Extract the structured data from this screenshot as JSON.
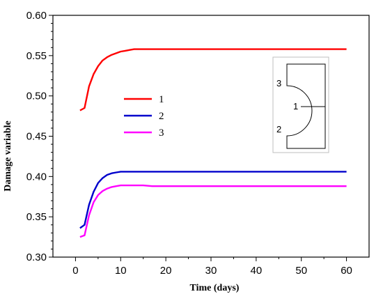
{
  "chart_data": {
    "type": "line",
    "xlabel": "Time (days)",
    "ylabel": "Damage variable",
    "xlim": [
      -5,
      65
    ],
    "ylim": [
      0.3,
      0.6
    ],
    "xticks": [
      "0",
      "10",
      "20",
      "30",
      "40",
      "50",
      "60"
    ],
    "yticks": [
      "0.30",
      "0.35",
      "0.40",
      "0.45",
      "0.50",
      "0.55",
      "0.60"
    ],
    "grid": false,
    "legend_position": "center-left",
    "series": [
      {
        "name": "1",
        "color": "#ff0000",
        "x": [
          1,
          2,
          3,
          4,
          5,
          6,
          7,
          8,
          9,
          10,
          11,
          12,
          13,
          15,
          20,
          30,
          40,
          50,
          60
        ],
        "y": [
          0.482,
          0.485,
          0.512,
          0.527,
          0.537,
          0.544,
          0.548,
          0.551,
          0.553,
          0.555,
          0.556,
          0.557,
          0.558,
          0.558,
          0.558,
          0.558,
          0.558,
          0.558,
          0.558
        ]
      },
      {
        "name": "2",
        "color": "#0000cc",
        "x": [
          1,
          2,
          3,
          4,
          5,
          6,
          7,
          8,
          9,
          10,
          12,
          20,
          30,
          40,
          50,
          60
        ],
        "y": [
          0.336,
          0.34,
          0.365,
          0.381,
          0.392,
          0.398,
          0.402,
          0.404,
          0.405,
          0.406,
          0.406,
          0.406,
          0.406,
          0.406,
          0.406,
          0.406
        ]
      },
      {
        "name": "3",
        "color": "#ff00ff",
        "x": [
          1,
          2,
          3,
          4,
          5,
          6,
          7,
          8,
          9,
          10,
          12,
          15,
          17,
          20,
          30,
          40,
          50,
          60
        ],
        "y": [
          0.325,
          0.327,
          0.352,
          0.368,
          0.377,
          0.382,
          0.385,
          0.387,
          0.388,
          0.389,
          0.389,
          0.389,
          0.388,
          0.388,
          0.388,
          0.388,
          0.388,
          0.388
        ]
      }
    ],
    "inset": {
      "labels": [
        "3",
        "1",
        "2"
      ]
    }
  }
}
